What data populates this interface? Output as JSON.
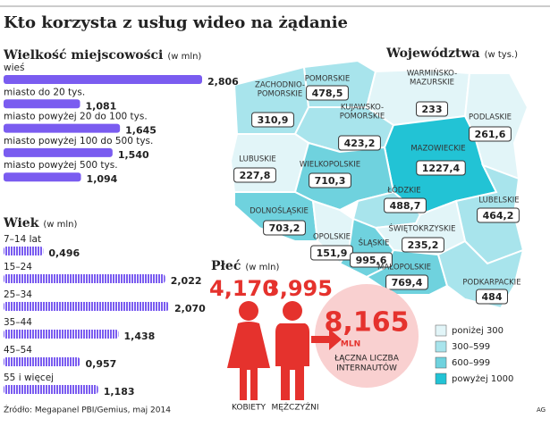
{
  "title": "Kto korzysta z usług wideo na żądanie",
  "chart_data": [
    {
      "type": "bar",
      "title": "Wielkość miejscowości",
      "subtitle": "(w mln)",
      "color": "#7a5cf0",
      "pattern": false,
      "categories": [
        "wieś",
        "miasto do 20 tys.",
        "miasto powyżej 20 do 100 tys.",
        "miasto powyżej 100 do 500 tys.",
        "miasto powyżej 500 tys."
      ],
      "values": [
        2.806,
        1.081,
        1.645,
        1.54,
        1.094
      ],
      "value_labels": [
        "2,806",
        "1,081",
        "1,645",
        "1,540",
        "1,094"
      ]
    },
    {
      "type": "bar",
      "title": "Wiek",
      "subtitle": "(w mln)",
      "color": "#7a5cf0",
      "pattern": true,
      "categories": [
        "7–14 lat",
        "15–24",
        "25–34",
        "35–44",
        "45–54",
        "55 i więcej"
      ],
      "values": [
        0.496,
        2.022,
        2.07,
        1.438,
        0.957,
        1.183
      ],
      "value_labels": [
        "0,496",
        "2,022",
        "2,070",
        "1,438",
        "0,957",
        "1,183"
      ]
    }
  ],
  "map": {
    "title": "Województwa",
    "subtitle": "(w tys.)",
    "regions": [
      {
        "name": [
          "ZACHODNIO-",
          "POMORSKIE"
        ],
        "value": "310,9",
        "color": "#a8e4ec"
      },
      {
        "name": [
          "POMORSKIE"
        ],
        "value": "478,5",
        "color": "#a8e4ec"
      },
      {
        "name": [
          "WARMIŃSKO-",
          "MAZURSKIE"
        ],
        "value": "233",
        "color": "#e2f5f8"
      },
      {
        "name": [
          "PODLASKIE"
        ],
        "value": "261,6",
        "color": "#e2f5f8"
      },
      {
        "name": [
          "KUJAWSKO-",
          "POMORSKIE"
        ],
        "value": "423,2",
        "color": "#a8e4ec"
      },
      {
        "name": [
          "MAZOWIECKIE"
        ],
        "value": "1227,4",
        "color": "#22c3d5"
      },
      {
        "name": [
          "LUBUSKIE"
        ],
        "value": "227,8",
        "color": "#e2f5f8"
      },
      {
        "name": [
          "WIELKOPOLSKIE"
        ],
        "value": "710,3",
        "color": "#6fd2de"
      },
      {
        "name": [
          "ŁÓDZKIE"
        ],
        "value": "488,7",
        "color": "#a8e4ec"
      },
      {
        "name": [
          "LUBELSKIE"
        ],
        "value": "464,2",
        "color": "#a8e4ec"
      },
      {
        "name": [
          "DOLNOŚLĄSKIE"
        ],
        "value": "703,2",
        "color": "#6fd2de"
      },
      {
        "name": [
          "ŚWIĘTOKRZYSKIE"
        ],
        "value": "235,2",
        "color": "#e2f5f8"
      },
      {
        "name": [
          "OPOLSKIE"
        ],
        "value": "151,9",
        "color": "#e2f5f8"
      },
      {
        "name": [
          "ŚLĄSKIE"
        ],
        "value": "995,6",
        "color": "#6fd2de"
      },
      {
        "name": [
          "MAŁOPOLSKIE"
        ],
        "value": "769,4",
        "color": "#6fd2de"
      },
      {
        "name": [
          "PODKARPACKIE"
        ],
        "value": "484",
        "color": "#a8e4ec"
      }
    ],
    "legend": [
      {
        "label": "poniżej 300",
        "color": "#e2f5f8"
      },
      {
        "label": "300–599",
        "color": "#a8e4ec"
      },
      {
        "label": "600–999",
        "color": "#6fd2de"
      },
      {
        "label": "powyżej 1000",
        "color": "#22c3d5"
      }
    ]
  },
  "gender": {
    "title": "Płeć",
    "subtitle": "(w mln)",
    "women": {
      "value": "4,170",
      "label": "KOBIETY"
    },
    "men": {
      "value": "3,995",
      "label": "MĘŻCZYŹNI"
    },
    "total": {
      "value": "8,165",
      "unit": "MLN",
      "label": [
        "ŁĄCZNA LICZBA",
        "INTERNAUTÓW"
      ]
    }
  },
  "source": "Źródło: Megapanel PBI/Gemius, maj 2014",
  "credit": "AG"
}
